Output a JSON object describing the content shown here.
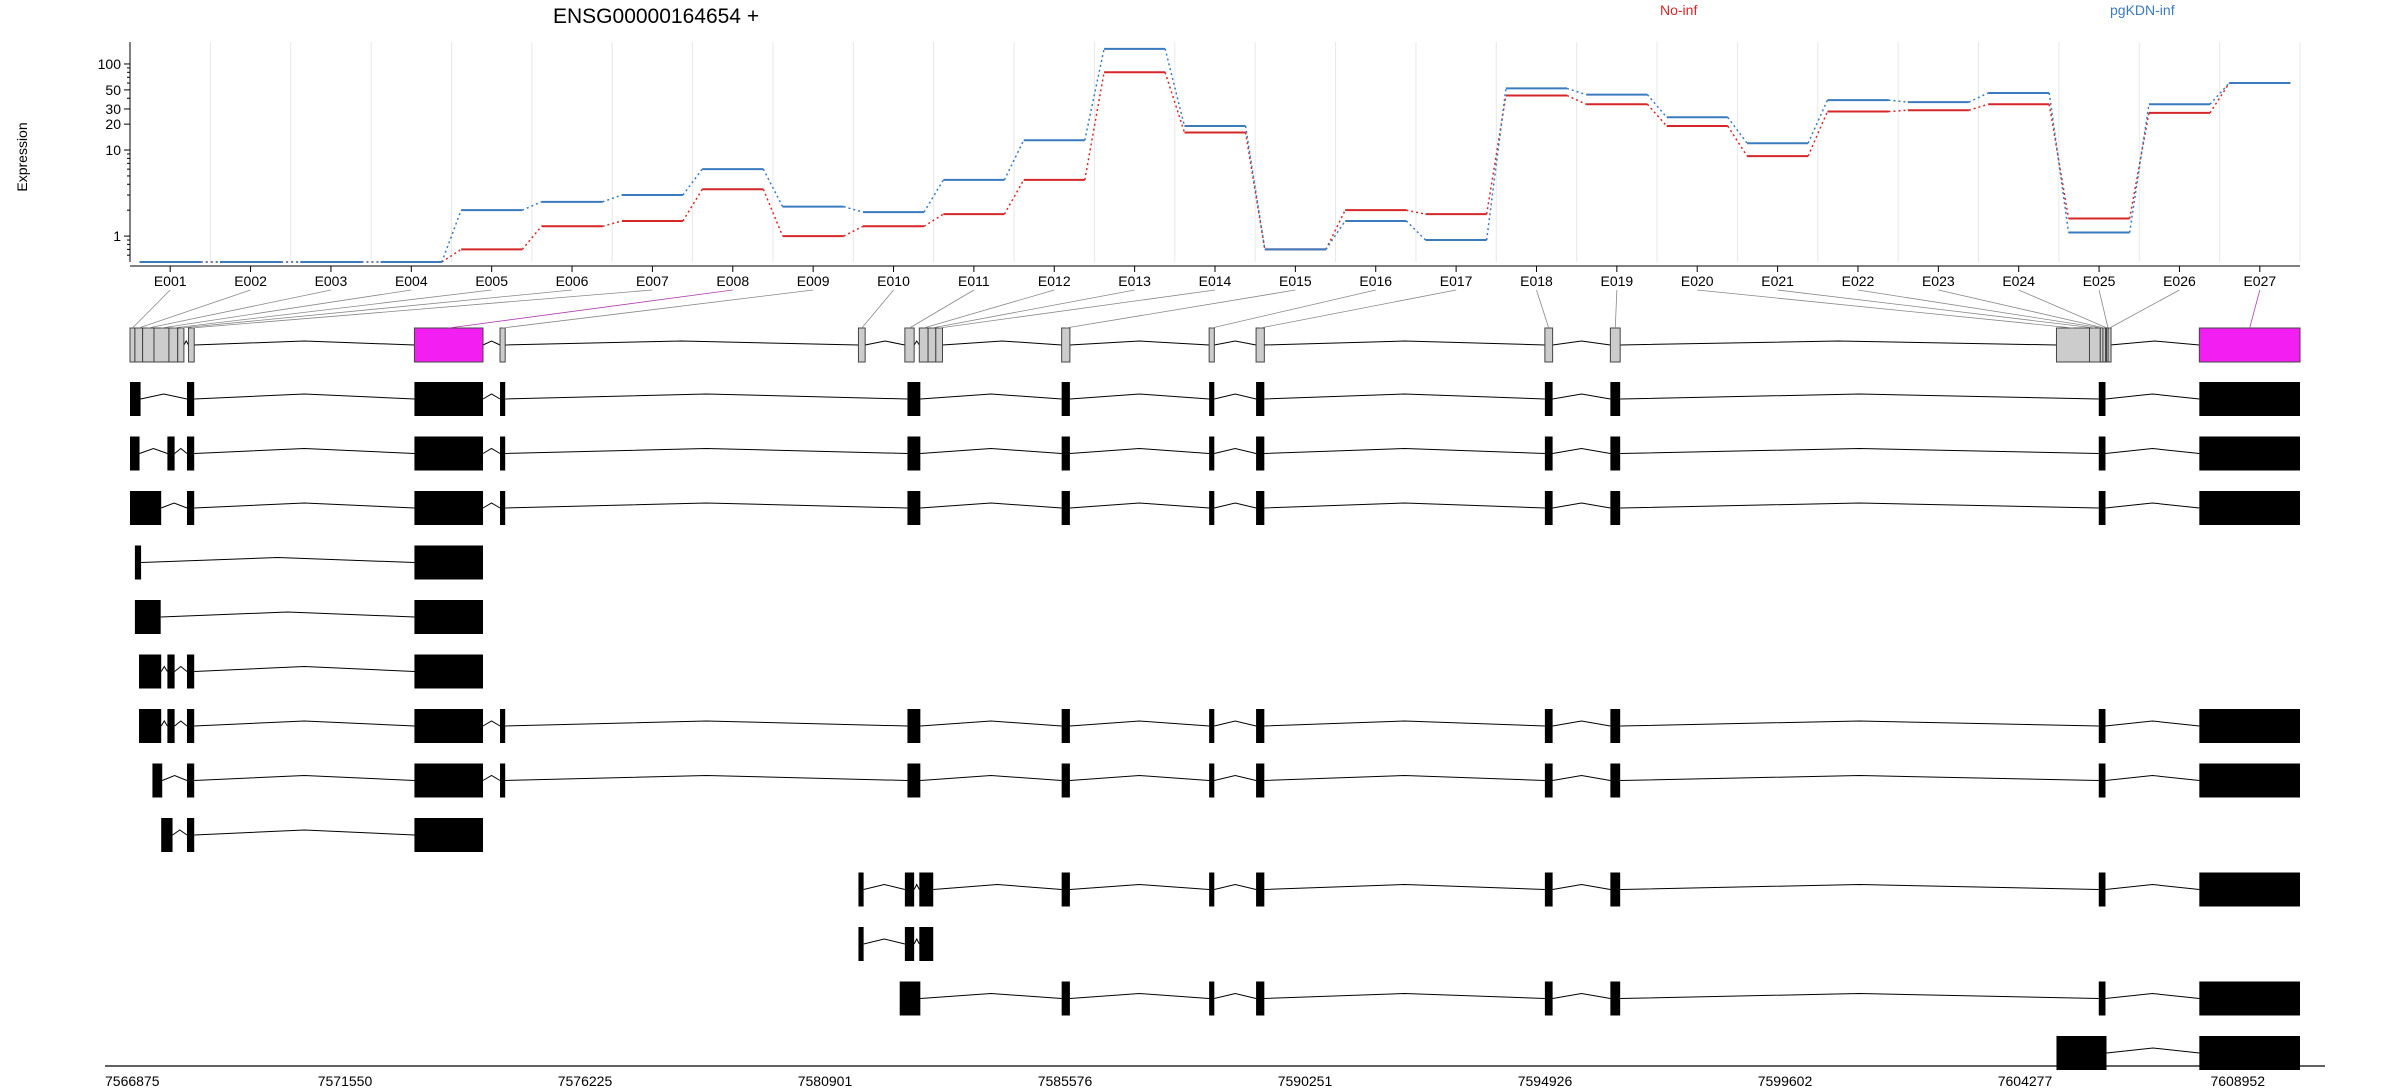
{
  "chart_data": {
    "type": "line",
    "title": "ENSG00000164654 +",
    "ylabel": "Expression",
    "y_scale": "log",
    "ylim": [
      0.5,
      180
    ],
    "yticks": [
      {
        "value": 1,
        "label": "1"
      },
      {
        "value": 10,
        "label": "10"
      },
      {
        "value": 20,
        "label": "20"
      },
      {
        "value": 30,
        "label": "30"
      },
      {
        "value": 50,
        "label": "50"
      },
      {
        "value": 100,
        "label": "100"
      }
    ],
    "categories": [
      "E001",
      "E002",
      "E003",
      "E004",
      "E005",
      "E006",
      "E007",
      "E008",
      "E009",
      "E010",
      "E011",
      "E012",
      "E013",
      "E014",
      "E015",
      "E016",
      "E017",
      "E018",
      "E019",
      "E020",
      "E021",
      "E022",
      "E023",
      "E024",
      "E025",
      "E026",
      "E027"
    ],
    "series": [
      {
        "name": "No-inf",
        "color": "#d62728",
        "values": [
          0.5,
          0.5,
          0.5,
          0.5,
          0.7,
          1.3,
          1.5,
          3.5,
          1.0,
          1.3,
          1.8,
          4.5,
          80,
          16,
          0.7,
          2.0,
          1.8,
          43,
          34,
          19,
          8.5,
          28,
          29,
          34,
          1.6,
          27,
          60
        ]
      },
      {
        "name": "pgKDN-inf",
        "color": "#3a7abf",
        "values": [
          0.5,
          0.5,
          0.5,
          0.5,
          2.0,
          2.5,
          3.0,
          6.0,
          2.2,
          1.9,
          4.5,
          13,
          150,
          19,
          0.7,
          1.5,
          0.9,
          52,
          44,
          24,
          12,
          38,
          36,
          46,
          1.1,
          34,
          60
        ]
      }
    ],
    "gene_model": {
      "coordinates": [
        "7566875",
        "7571550",
        "7576225",
        "7580901",
        "7585576",
        "7590251",
        "7594926",
        "7599602",
        "7604277",
        "7608952"
      ],
      "coord_range": [
        7566875,
        7608952
      ],
      "highlight_color": "#f21ef2",
      "exon_color": "#cccccc",
      "exons": [
        {
          "id": "E001",
          "start": 7566875,
          "end": 7566970
        },
        {
          "id": "E002",
          "start": 7566970,
          "end": 7567120
        },
        {
          "id": "E003",
          "start": 7567120,
          "end": 7567340
        },
        {
          "id": "E004",
          "start": 7567340,
          "end": 7567630
        },
        {
          "id": "E005",
          "start": 7567630,
          "end": 7567800
        },
        {
          "id": "E006",
          "start": 7567800,
          "end": 7567920
        },
        {
          "id": "E007",
          "start": 7568010,
          "end": 7568120
        },
        {
          "id": "E008",
          "start": 7572390,
          "end": 7573720,
          "highlight": true
        },
        {
          "id": "E009",
          "start": 7574050,
          "end": 7574150
        },
        {
          "id": "E010",
          "start": 7581000,
          "end": 7581130
        },
        {
          "id": "E011",
          "start": 7581900,
          "end": 7582080
        },
        {
          "id": "E012",
          "start": 7582180,
          "end": 7582350
        },
        {
          "id": "E013",
          "start": 7582350,
          "end": 7582500
        },
        {
          "id": "E014",
          "start": 7582500,
          "end": 7582630
        },
        {
          "id": "E015",
          "start": 7584940,
          "end": 7585100
        },
        {
          "id": "E016",
          "start": 7587800,
          "end": 7587900
        },
        {
          "id": "E017",
          "start": 7588710,
          "end": 7588870
        },
        {
          "id": "E018",
          "start": 7594310,
          "end": 7594460
        },
        {
          "id": "E019",
          "start": 7595580,
          "end": 7595770
        },
        {
          "id": "E020",
          "start": 7604230,
          "end": 7604870
        },
        {
          "id": "E021",
          "start": 7604870,
          "end": 7605080
        },
        {
          "id": "E022",
          "start": 7605080,
          "end": 7605130
        },
        {
          "id": "E023",
          "start": 7605130,
          "end": 7605180
        },
        {
          "id": "E024",
          "start": 7605180,
          "end": 7605200
        },
        {
          "id": "E025",
          "start": 7605200,
          "end": 7605230
        },
        {
          "id": "E026",
          "start": 7605230,
          "end": 7605270
        },
        {
          "id": "E027",
          "start": 7607000,
          "end": 7608952,
          "highlight": true
        }
      ],
      "transcripts": [
        [
          [
            7566875,
            7567080
          ],
          [
            7567980,
            7568120
          ],
          [
            7572390,
            7573720
          ],
          [
            7574050,
            7574150
          ],
          [
            7581950,
            7582200
          ],
          [
            7584940,
            7585100
          ],
          [
            7587800,
            7587900
          ],
          [
            7588710,
            7588870
          ],
          [
            7594310,
            7594460
          ],
          [
            7595580,
            7595770
          ],
          [
            7605050,
            7605180
          ],
          [
            7607000,
            7608952
          ]
        ],
        [
          [
            7566875,
            7567060
          ],
          [
            7567600,
            7567740
          ],
          [
            7567980,
            7568120
          ],
          [
            7572390,
            7573720
          ],
          [
            7574050,
            7574150
          ],
          [
            7581950,
            7582200
          ],
          [
            7584940,
            7585100
          ],
          [
            7587800,
            7587900
          ],
          [
            7588710,
            7588870
          ],
          [
            7594310,
            7594460
          ],
          [
            7595580,
            7595770
          ],
          [
            7605050,
            7605180
          ],
          [
            7607000,
            7608952
          ]
        ],
        [
          [
            7566875,
            7567480
          ],
          [
            7567980,
            7568120
          ],
          [
            7572390,
            7573720
          ],
          [
            7574050,
            7574150
          ],
          [
            7581950,
            7582200
          ],
          [
            7584940,
            7585100
          ],
          [
            7587800,
            7587900
          ],
          [
            7588710,
            7588870
          ],
          [
            7594310,
            7594460
          ],
          [
            7595580,
            7595770
          ],
          [
            7605050,
            7605180
          ],
          [
            7607000,
            7608952
          ]
        ],
        [
          [
            7566970,
            7567090
          ],
          [
            7572390,
            7573720
          ]
        ],
        [
          [
            7566970,
            7567470
          ],
          [
            7572390,
            7573720
          ]
        ],
        [
          [
            7567050,
            7567480
          ],
          [
            7567600,
            7567740
          ],
          [
            7567980,
            7568120
          ],
          [
            7572390,
            7573720
          ]
        ],
        [
          [
            7567050,
            7567480
          ],
          [
            7567600,
            7567740
          ],
          [
            7567980,
            7568120
          ],
          [
            7572390,
            7573720
          ],
          [
            7574050,
            7574150
          ],
          [
            7581950,
            7582200
          ],
          [
            7584940,
            7585100
          ],
          [
            7587800,
            7587900
          ],
          [
            7588710,
            7588870
          ],
          [
            7594310,
            7594460
          ],
          [
            7595580,
            7595770
          ],
          [
            7605050,
            7605180
          ],
          [
            7607000,
            7608952
          ]
        ],
        [
          [
            7567310,
            7567500
          ],
          [
            7567980,
            7568120
          ],
          [
            7572390,
            7573720
          ],
          [
            7574050,
            7574150
          ],
          [
            7581950,
            7582200
          ],
          [
            7584940,
            7585100
          ],
          [
            7587800,
            7587900
          ],
          [
            7588710,
            7588870
          ],
          [
            7594310,
            7594460
          ],
          [
            7595580,
            7595770
          ],
          [
            7605050,
            7605180
          ],
          [
            7607000,
            7608952
          ]
        ],
        [
          [
            7567480,
            7567700
          ],
          [
            7567980,
            7568120
          ],
          [
            7572390,
            7573720
          ]
        ],
        [
          [
            7581000,
            7581100
          ],
          [
            7581900,
            7582080
          ],
          [
            7582180,
            7582450
          ],
          [
            7584940,
            7585100
          ],
          [
            7587800,
            7587900
          ],
          [
            7588710,
            7588870
          ],
          [
            7594310,
            7594460
          ],
          [
            7595580,
            7595770
          ],
          [
            7605050,
            7605180
          ],
          [
            7607000,
            7608952
          ]
        ],
        [
          [
            7581000,
            7581100
          ],
          [
            7581900,
            7582080
          ],
          [
            7582180,
            7582450
          ]
        ],
        [
          [
            7581800,
            7582200
          ],
          [
            7584940,
            7585100
          ],
          [
            7587800,
            7587900
          ],
          [
            7588710,
            7588870
          ],
          [
            7594310,
            7594460
          ],
          [
            7595580,
            7595770
          ],
          [
            7605050,
            7605180
          ],
          [
            7607000,
            7608952
          ]
        ],
        [
          [
            7604230,
            7605200
          ],
          [
            7607000,
            7608952
          ]
        ]
      ]
    }
  }
}
